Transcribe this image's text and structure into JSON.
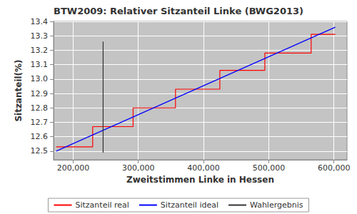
{
  "chart_data": {
    "type": "line",
    "title": "BTW2009: Relativer Sitzanteil Linke (BWG2013)",
    "x_label": "Zweitstimmen Linke in Hessen",
    "y_label": "Sitzanteil(%)",
    "xlim": [
      170000,
      620000
    ],
    "xticks": [
      {
        "value": 200000,
        "label": "200,000"
      },
      {
        "value": 300000,
        "label": "300,000"
      },
      {
        "value": 400000,
        "label": "400,000"
      },
      {
        "value": 500000,
        "label": "500,000"
      },
      {
        "value": 600000,
        "label": "600,000"
      }
    ],
    "ylim": [
      12.44,
      13.4
    ],
    "yticks": [
      12.5,
      12.6,
      12.7,
      12.8,
      12.9,
      {
        "value": 13,
        "label": "13.0"
      },
      13.1,
      13.2,
      13.3,
      13.4
    ],
    "grid": true,
    "legend": "bottom",
    "series": [
      {
        "name": "Sitzanteil real",
        "color": "#ff0000",
        "line_style": "step",
        "x": [
          174000,
          230000,
          292000,
          357000,
          425000,
          494000,
          565000,
          602000
        ],
        "values": [
          12.53,
          12.67,
          12.8,
          12.93,
          13.06,
          13.18,
          13.31,
          13.31
        ]
      },
      {
        "name": "Sitzanteil ideal",
        "color": "#0000ff",
        "line_style": "solid",
        "x": [
          174000,
          602000
        ],
        "values": [
          12.5,
          13.36
        ]
      },
      {
        "name": "Wahlergebnis",
        "color": "#333333",
        "line_style": "solid",
        "x": [
          246000,
          246000
        ],
        "values": [
          12.49,
          13.26
        ]
      }
    ]
  }
}
